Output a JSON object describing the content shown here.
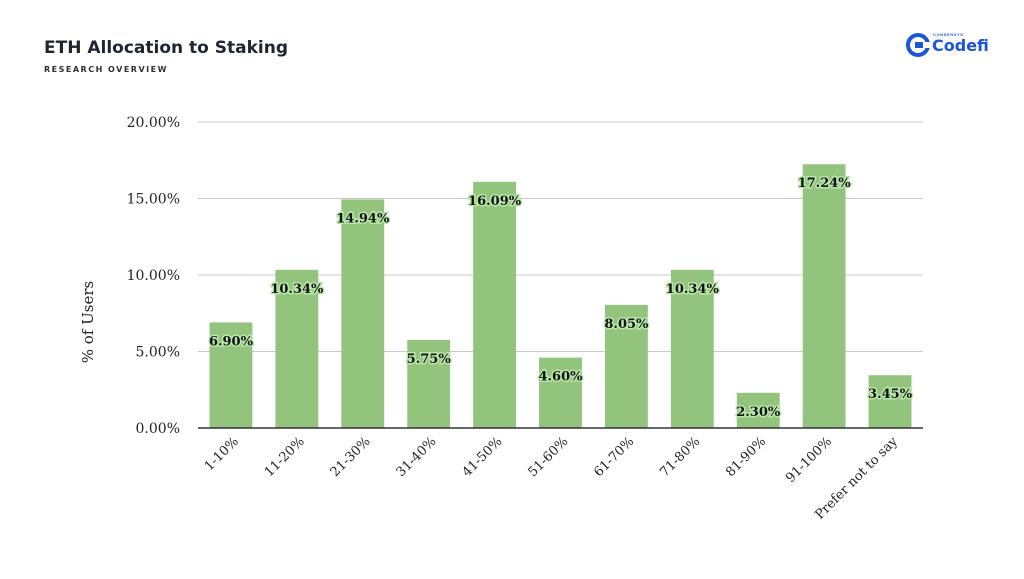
{
  "header": {
    "title": "ETH Allocation to Staking",
    "subtitle": "RESEARCH OVERVIEW"
  },
  "logo": {
    "top_text": "CONSENSYS",
    "word": "Codefi",
    "color": "#1a56db"
  },
  "chart_data": {
    "type": "bar",
    "categories": [
      "1-10%",
      "11-20%",
      "21-30%",
      "31-40%",
      "41-50%",
      "51-60%",
      "61-70%",
      "71-80%",
      "81-90%",
      "91-100%",
      "Prefer not to say"
    ],
    "values": [
      6.9,
      10.34,
      14.94,
      5.75,
      16.09,
      4.6,
      8.05,
      10.34,
      2.3,
      17.24,
      3.45
    ],
    "data_labels": [
      "6.90%",
      "10.34%",
      "14.94%",
      "5.75%",
      "16.09%",
      "4.60%",
      "8.05%",
      "10.34%",
      "2.30%",
      "17.24%",
      "3.45%"
    ],
    "xlabel": "",
    "ylabel": "% of Users",
    "ylim": [
      0,
      20
    ],
    "yticks": [
      0,
      5,
      10,
      15,
      20
    ],
    "ytick_labels": [
      "0.00%",
      "5.00%",
      "10.00%",
      "15.00%",
      "20.00%"
    ],
    "grid": true,
    "bar_color": "#93c47d",
    "label_glow_color": "#b8e7a8"
  }
}
